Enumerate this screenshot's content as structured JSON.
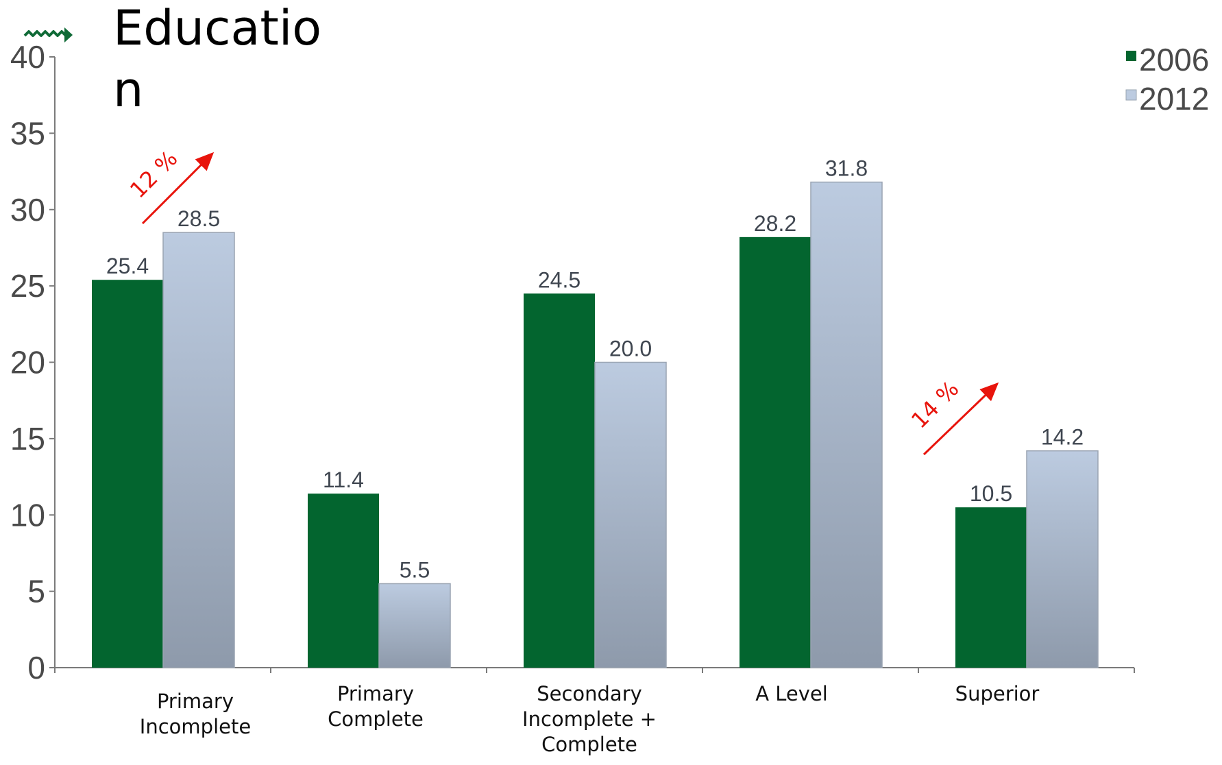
{
  "title_line1": "Educatio",
  "title_line2": "n",
  "chart_data": {
    "type": "bar",
    "title": "Education",
    "categories": [
      [
        "Primary",
        "Incomplete"
      ],
      [
        "Primary",
        "Complete"
      ],
      [
        "Secondary",
        "Incomplete +",
        "Complete"
      ],
      [
        "A Level"
      ],
      [
        "Superior"
      ]
    ],
    "series": [
      {
        "name": "2006",
        "values": [
          25.4,
          11.4,
          24.5,
          28.2,
          10.5
        ]
      },
      {
        "name": "2012",
        "values": [
          28.5,
          5.5,
          20.0,
          31.8,
          14.2
        ]
      }
    ],
    "value_labels": [
      [
        "25.4",
        "11.4",
        "24.5",
        "28.2",
        "10.5"
      ],
      [
        "28.5",
        "5.5",
        "20.0",
        "31.8",
        "14.2"
      ]
    ],
    "ylim": [
      0,
      40
    ],
    "yticks": [
      0,
      5,
      10,
      15,
      20,
      25,
      30,
      35,
      40
    ],
    "xlabel": "",
    "ylabel": "",
    "grid": false,
    "legend_position": "top-right",
    "annotations": [
      {
        "text": "12 %",
        "category_index": 0
      },
      {
        "text": "14 %",
        "category_index": 4
      }
    ]
  },
  "colors": {
    "series_2006": "#03652f",
    "series_2012_top": "#bccbe0",
    "series_2012_bottom": "#8e9aab",
    "axis": "#7a7a7a",
    "annotation": "#e8140c",
    "logo": "#0f6a36"
  },
  "icons": {
    "logo": "green-zigzag-arrow-icon"
  }
}
